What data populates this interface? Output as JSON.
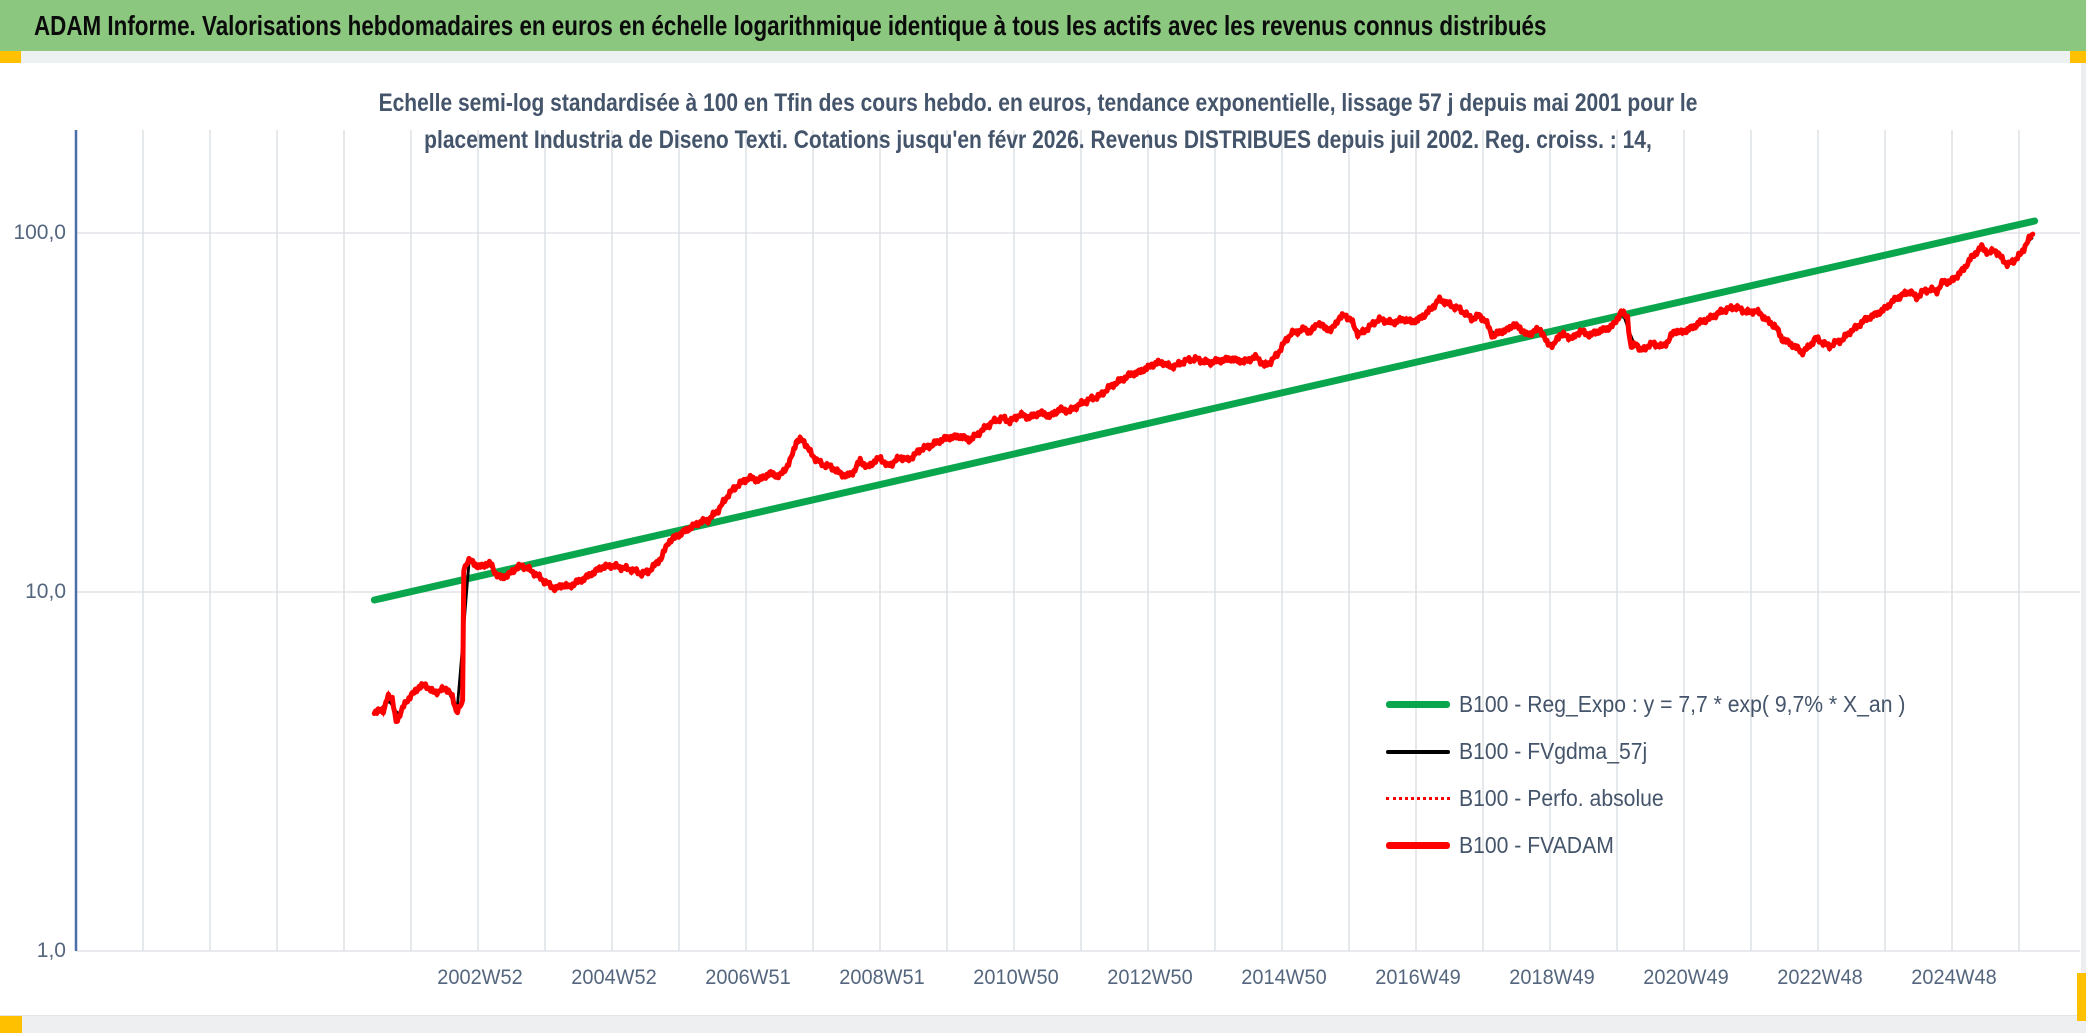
{
  "header": {
    "title": "ADAM Informe. Valorisations hebdomadaires en euros en échelle logarithmique identique à tous les actifs avec les revenus connus distribués",
    "bg_color": "#8BC77E",
    "accent_color": "#FFC000"
  },
  "subtitle": {
    "line1": "Echelle semi-log standardisée à 100 en Tfin des cours hebdo. en euros, tendance exponentielle, lissage 57 j depuis mai 2001 pour le",
    "line2": "placement Industria de Diseno Texti. Cotations jusqu'en févr 2026. Revenus DISTRIBUES depuis juil 2002. Reg. croiss. : 14,"
  },
  "colors": {
    "grid": "#D9DDE2",
    "axis_line": "#4A6EA9",
    "tick_label": "#54667E",
    "title_text": "#44546A",
    "trend_green": "#0AA64E",
    "series_red": "#FE0000",
    "series_black": "#000000"
  },
  "chart_data": {
    "type": "line",
    "title": "Echelle semi-log standardisée à 100 en Tfin des cours hebdo. en euros, tendance exponentielle, lissage 57 j depuis mai 2001 pour le placement Industria de Diseno Texti. Cotations jusqu'en févr 2026. Revenus DISTRIBUES depuis juil 2002. Reg. croiss. : 14,",
    "legend_position": "inside-right-lower",
    "grid": "on",
    "y_axis": {
      "scale": "log",
      "ticks": [
        100,
        10,
        1
      ],
      "tick_labels": [
        "100,0",
        "10,0",
        "1,0"
      ],
      "range": [
        1,
        195
      ]
    },
    "x_axis": {
      "labels": [
        "2002W52",
        "2004W52",
        "2006W51",
        "2008W51",
        "2010W50",
        "2012W50",
        "2014W50",
        "2016W49",
        "2018W49",
        "2020W49",
        "2022W48",
        "2024W48"
      ],
      "range_years": [
        2001.4,
        2026.1
      ],
      "unit": "ISO week"
    },
    "series": [
      {
        "name": "B100 - Reg_Expo : y = 7,7 * exp( 9,7% * X_an )",
        "color": "#0AA64E",
        "style": "solid-thick",
        "points": [
          [
            2001.43,
            9.5
          ],
          [
            2026.1,
            108
          ]
        ]
      },
      {
        "name": "B100 - FVgdma_57j",
        "color": "#000000",
        "style": "solid-thin",
        "derived": "57-day moving average of B100 - FVADAM"
      },
      {
        "name": "B100 - Perfo. absolue",
        "color": "#FE0000",
        "style": "dotted",
        "derived": "coincides with B100 - FVADAM"
      },
      {
        "name": "B100 - FVADAM",
        "color": "#FE0000",
        "style": "solid-thick",
        "points": [
          [
            2001.43,
            4.55
          ],
          [
            2001.5,
            4.75
          ],
          [
            2001.57,
            4.6
          ],
          [
            2001.63,
            5.2
          ],
          [
            2001.7,
            5.0
          ],
          [
            2001.75,
            4.35
          ],
          [
            2001.82,
            4.6
          ],
          [
            2001.9,
            4.95
          ],
          [
            2002.0,
            5.2
          ],
          [
            2002.1,
            5.45
          ],
          [
            2002.2,
            5.5
          ],
          [
            2002.3,
            5.25
          ],
          [
            2002.4,
            5.3
          ],
          [
            2002.5,
            5.4
          ],
          [
            2002.58,
            5.15
          ],
          [
            2002.65,
            4.65
          ],
          [
            2002.72,
            4.85
          ],
          [
            2002.74,
            4.7
          ],
          [
            2002.76,
            11.6
          ],
          [
            2002.82,
            12.25
          ],
          [
            2002.9,
            12.1
          ],
          [
            2002.98,
            11.7
          ],
          [
            2003.08,
            11.95
          ],
          [
            2003.16,
            12.0
          ],
          [
            2003.24,
            11.2
          ],
          [
            2003.32,
            10.95
          ],
          [
            2003.42,
            11.15
          ],
          [
            2003.52,
            11.6
          ],
          [
            2003.62,
            11.85
          ],
          [
            2003.72,
            11.6
          ],
          [
            2003.82,
            11.25
          ],
          [
            2003.92,
            10.85
          ],
          [
            2004.02,
            10.5
          ],
          [
            2004.12,
            10.2
          ],
          [
            2004.22,
            10.45
          ],
          [
            2004.32,
            10.35
          ],
          [
            2004.42,
            10.6
          ],
          [
            2004.55,
            10.9
          ],
          [
            2004.68,
            11.3
          ],
          [
            2004.8,
            11.7
          ],
          [
            2004.95,
            11.85
          ],
          [
            2005.1,
            11.7
          ],
          [
            2005.25,
            11.55
          ],
          [
            2005.4,
            11.25
          ],
          [
            2005.5,
            11.4
          ],
          [
            2005.6,
            11.9
          ],
          [
            2005.7,
            12.5
          ],
          [
            2005.8,
            13.8
          ],
          [
            2005.95,
            14.4
          ],
          [
            2006.1,
            15.0
          ],
          [
            2006.25,
            15.6
          ],
          [
            2006.4,
            15.9
          ],
          [
            2006.55,
            17.0
          ],
          [
            2006.7,
            18.8
          ],
          [
            2006.85,
            20.0
          ],
          [
            2007.0,
            20.8
          ],
          [
            2007.15,
            20.5
          ],
          [
            2007.3,
            21.4
          ],
          [
            2007.45,
            21.0
          ],
          [
            2007.6,
            22.9
          ],
          [
            2007.7,
            26.3
          ],
          [
            2007.8,
            26.6
          ],
          [
            2007.9,
            24.6
          ],
          [
            2008.0,
            23.3
          ],
          [
            2008.1,
            22.6
          ],
          [
            2008.2,
            22.4
          ],
          [
            2008.35,
            21.4
          ],
          [
            2008.45,
            21.0
          ],
          [
            2008.55,
            21.6
          ],
          [
            2008.65,
            23.3
          ],
          [
            2008.75,
            22.2
          ],
          [
            2008.85,
            23.0
          ],
          [
            2008.95,
            23.7
          ],
          [
            2009.05,
            22.4
          ],
          [
            2009.15,
            23.0
          ],
          [
            2009.25,
            23.8
          ],
          [
            2009.35,
            23.3
          ],
          [
            2009.45,
            24.0
          ],
          [
            2009.55,
            25.0
          ],
          [
            2009.7,
            25.6
          ],
          [
            2009.85,
            26.5
          ],
          [
            2010.0,
            27.0
          ],
          [
            2010.15,
            27.1
          ],
          [
            2010.28,
            26.5
          ],
          [
            2010.43,
            27.9
          ],
          [
            2010.62,
            29.8
          ],
          [
            2010.77,
            30.6
          ],
          [
            2010.87,
            29.8
          ],
          [
            2011.02,
            31.2
          ],
          [
            2011.17,
            30.6
          ],
          [
            2011.32,
            31.6
          ],
          [
            2011.47,
            30.9
          ],
          [
            2011.62,
            32.3
          ],
          [
            2011.76,
            31.9
          ],
          [
            2011.91,
            33.3
          ],
          [
            2012.06,
            34.4
          ],
          [
            2012.21,
            35.2
          ],
          [
            2012.36,
            37.3
          ],
          [
            2012.51,
            38.8
          ],
          [
            2012.66,
            40.3
          ],
          [
            2012.8,
            41.0
          ],
          [
            2012.95,
            42.5
          ],
          [
            2013.05,
            43.4
          ],
          [
            2013.15,
            43.6
          ],
          [
            2013.25,
            42.4
          ],
          [
            2013.35,
            42.8
          ],
          [
            2013.45,
            43.8
          ],
          [
            2013.55,
            44.4
          ],
          [
            2013.65,
            44.6
          ],
          [
            2013.75,
            43.8
          ],
          [
            2013.85,
            43.6
          ],
          [
            2013.95,
            44.0
          ],
          [
            2014.05,
            44.3
          ],
          [
            2014.15,
            44.6
          ],
          [
            2014.25,
            44.2
          ],
          [
            2014.35,
            43.8
          ],
          [
            2014.45,
            44.6
          ],
          [
            2014.55,
            45.2
          ],
          [
            2014.65,
            42.6
          ],
          [
            2014.75,
            43.8
          ],
          [
            2014.85,
            46.0
          ],
          [
            2014.95,
            49.5
          ],
          [
            2015.05,
            52.5
          ],
          [
            2015.15,
            53.2
          ],
          [
            2015.25,
            54.0
          ],
          [
            2015.35,
            53.0
          ],
          [
            2015.45,
            56.3
          ],
          [
            2015.55,
            54.5
          ],
          [
            2015.65,
            53.5
          ],
          [
            2015.75,
            57.5
          ],
          [
            2015.85,
            59.2
          ],
          [
            2015.95,
            57.0
          ],
          [
            2016.05,
            52.0
          ],
          [
            2016.15,
            53.5
          ],
          [
            2016.25,
            55.5
          ],
          [
            2016.35,
            57.5
          ],
          [
            2016.45,
            57.0
          ],
          [
            2016.55,
            56.2
          ],
          [
            2016.65,
            57.0
          ],
          [
            2016.75,
            57.5
          ],
          [
            2016.85,
            56.5
          ],
          [
            2016.95,
            57.5
          ],
          [
            2017.05,
            59.5
          ],
          [
            2017.15,
            62.0
          ],
          [
            2017.25,
            65.2
          ],
          [
            2017.35,
            64.2
          ],
          [
            2017.45,
            62.5
          ],
          [
            2017.55,
            61.5
          ],
          [
            2017.65,
            59.5
          ],
          [
            2017.75,
            57.5
          ],
          [
            2017.85,
            59.0
          ],
          [
            2017.95,
            56.5
          ],
          [
            2018.05,
            51.5
          ],
          [
            2018.15,
            53.0
          ],
          [
            2018.25,
            53.5
          ],
          [
            2018.35,
            55.5
          ],
          [
            2018.45,
            54.5
          ],
          [
            2018.55,
            52.0
          ],
          [
            2018.65,
            53.0
          ],
          [
            2018.75,
            54.2
          ],
          [
            2018.85,
            49.5
          ],
          [
            2018.95,
            48.5
          ],
          [
            2019.05,
            52.5
          ],
          [
            2019.15,
            51.5
          ],
          [
            2019.25,
            51.0
          ],
          [
            2019.35,
            53.5
          ],
          [
            2019.45,
            52.0
          ],
          [
            2019.55,
            52.5
          ],
          [
            2019.65,
            53.5
          ],
          [
            2019.75,
            54.2
          ],
          [
            2019.85,
            55.5
          ],
          [
            2019.95,
            60.2
          ],
          [
            2020.05,
            58.5
          ],
          [
            2020.1,
            47.5
          ],
          [
            2020.18,
            49.5
          ],
          [
            2020.25,
            46.8
          ],
          [
            2020.35,
            48.5
          ],
          [
            2020.45,
            49.2
          ],
          [
            2020.55,
            48.2
          ],
          [
            2020.65,
            49.8
          ],
          [
            2020.75,
            53.5
          ],
          [
            2020.85,
            52.8
          ],
          [
            2020.95,
            53.8
          ],
          [
            2021.05,
            55.0
          ],
          [
            2021.15,
            56.8
          ],
          [
            2021.25,
            57.5
          ],
          [
            2021.35,
            59.0
          ],
          [
            2021.45,
            60.5
          ],
          [
            2021.55,
            61.5
          ],
          [
            2021.65,
            62.2
          ],
          [
            2021.75,
            61.0
          ],
          [
            2021.85,
            60.0
          ],
          [
            2021.95,
            60.8
          ],
          [
            2022.05,
            59.0
          ],
          [
            2022.15,
            56.5
          ],
          [
            2022.25,
            55.0
          ],
          [
            2022.35,
            50.5
          ],
          [
            2022.45,
            49.5
          ],
          [
            2022.55,
            48.0
          ],
          [
            2022.65,
            46.5
          ],
          [
            2022.75,
            48.3
          ],
          [
            2022.85,
            51.0
          ],
          [
            2022.95,
            49.5
          ],
          [
            2023.05,
            48.3
          ],
          [
            2023.15,
            49.6
          ],
          [
            2023.25,
            50.5
          ],
          [
            2023.35,
            53.0
          ],
          [
            2023.45,
            54.5
          ],
          [
            2023.55,
            56.8
          ],
          [
            2023.65,
            58.2
          ],
          [
            2023.75,
            59.5
          ],
          [
            2023.85,
            61.0
          ],
          [
            2023.95,
            63.5
          ],
          [
            2024.05,
            65.8
          ],
          [
            2024.15,
            67.4
          ],
          [
            2024.25,
            68.7
          ],
          [
            2024.35,
            66.0
          ],
          [
            2024.45,
            69.0
          ],
          [
            2024.55,
            69.5
          ],
          [
            2024.65,
            69.0
          ],
          [
            2024.75,
            73.5
          ],
          [
            2024.85,
            73.0
          ],
          [
            2024.95,
            76.0
          ],
          [
            2025.05,
            79.5
          ],
          [
            2025.15,
            85.0
          ],
          [
            2025.25,
            89.0
          ],
          [
            2025.32,
            91.5
          ],
          [
            2025.42,
            87.5
          ],
          [
            2025.5,
            90.0
          ],
          [
            2025.6,
            85.5
          ],
          [
            2025.7,
            81.5
          ],
          [
            2025.8,
            84.0
          ],
          [
            2025.9,
            87.5
          ],
          [
            2025.97,
            93.0
          ],
          [
            2026.03,
            97.0
          ],
          [
            2026.08,
            99.5
          ]
        ]
      }
    ]
  }
}
